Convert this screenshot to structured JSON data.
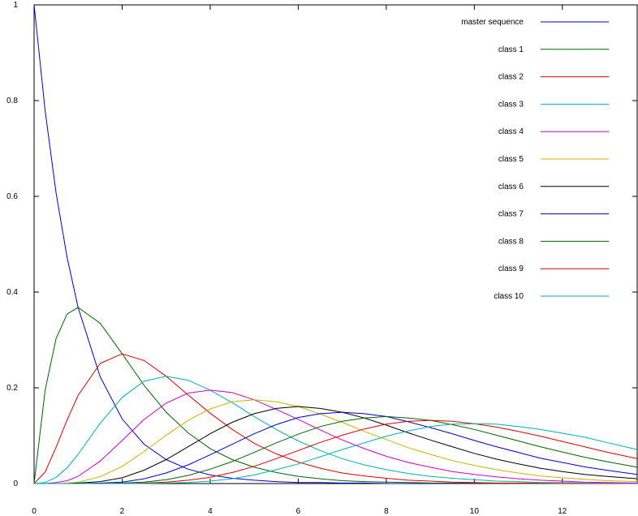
{
  "chart_data": {
    "type": "line",
    "title": "",
    "xlabel": "",
    "ylabel": "",
    "xlim": [
      0,
      13.7
    ],
    "ylim": [
      0,
      1
    ],
    "grid": false,
    "legend_placement": "top-right",
    "x_ticks": [
      {
        "value": 0,
        "label": "0"
      },
      {
        "value": 2,
        "label": "2"
      },
      {
        "value": 4,
        "label": "4"
      },
      {
        "value": 6,
        "label": "6"
      },
      {
        "value": 8,
        "label": "8"
      },
      {
        "value": 10,
        "label": "10"
      },
      {
        "value": 12,
        "label": "12"
      }
    ],
    "y_ticks": [
      {
        "value": 0,
        "label": "0"
      },
      {
        "value": 0.2,
        "label": "0.2"
      },
      {
        "value": 0.4,
        "label": "0.4"
      },
      {
        "value": 0.6,
        "label": "0.6"
      },
      {
        "value": 0.8,
        "label": "0.8"
      },
      {
        "value": 1,
        "label": "1"
      }
    ],
    "x": [
      0,
      0.25,
      0.5,
      0.75,
      1,
      1.5,
      2,
      2.5,
      3,
      3.5,
      4,
      4.5,
      5,
      5.5,
      6,
      6.5,
      7,
      7.5,
      8,
      8.5,
      9,
      9.5,
      10,
      10.5,
      11,
      11.5,
      12,
      12.5,
      13,
      13.7
    ],
    "series": [
      {
        "name": "master sequence",
        "color": "#0000cc",
        "values": [
          1,
          0.779,
          0.607,
          0.472,
          0.368,
          0.223,
          0.135,
          0.082,
          0.05,
          0.03,
          0.018,
          0.011,
          0.007,
          0.004,
          0.002,
          0.002,
          0.001,
          0.001,
          0,
          0,
          0,
          0,
          0,
          0,
          0,
          0,
          0,
          0,
          0,
          0
        ]
      },
      {
        "name": "class 1",
        "color": "#006400",
        "values": [
          0,
          0.195,
          0.303,
          0.354,
          0.368,
          0.335,
          0.271,
          0.205,
          0.149,
          0.106,
          0.073,
          0.05,
          0.034,
          0.023,
          0.015,
          0.01,
          0.006,
          0.004,
          0.003,
          0.002,
          0.001,
          0.001,
          0.001,
          0,
          0,
          0,
          0,
          0,
          0,
          0
        ]
      },
      {
        "name": "class 2",
        "color": "#dd0000",
        "values": [
          0,
          0.024,
          0.076,
          0.133,
          0.184,
          0.251,
          0.271,
          0.257,
          0.224,
          0.185,
          0.147,
          0.113,
          0.084,
          0.062,
          0.045,
          0.032,
          0.022,
          0.016,
          0.011,
          0.007,
          0.005,
          0.003,
          0.002,
          0.001,
          0.001,
          0.001,
          0,
          0,
          0,
          0
        ]
      },
      {
        "name": "class 3",
        "color": "#00b0b0",
        "values": [
          0,
          0.002,
          0.013,
          0.033,
          0.061,
          0.126,
          0.18,
          0.214,
          0.224,
          0.216,
          0.195,
          0.169,
          0.14,
          0.113,
          0.089,
          0.069,
          0.052,
          0.039,
          0.029,
          0.021,
          0.015,
          0.011,
          0.008,
          0.005,
          0.004,
          0.002,
          0.002,
          0.001,
          0.001,
          0
        ]
      },
      {
        "name": "class 4",
        "color": "#cc00cc",
        "values": [
          0,
          0,
          0.002,
          0.006,
          0.015,
          0.047,
          0.09,
          0.134,
          0.168,
          0.189,
          0.195,
          0.19,
          0.175,
          0.155,
          0.134,
          0.112,
          0.091,
          0.073,
          0.057,
          0.044,
          0.034,
          0.025,
          0.019,
          0.014,
          0.01,
          0.007,
          0.005,
          0.003,
          0.002,
          0.001
        ]
      },
      {
        "name": "class 5",
        "color": "#c8b400",
        "values": [
          0,
          0,
          0,
          0.001,
          0.003,
          0.014,
          0.036,
          0.067,
          0.101,
          0.132,
          0.156,
          0.171,
          0.175,
          0.171,
          0.161,
          0.145,
          0.128,
          0.109,
          0.092,
          0.075,
          0.061,
          0.048,
          0.038,
          0.029,
          0.022,
          0.016,
          0.012,
          0.009,
          0.006,
          0.004
        ]
      },
      {
        "name": "class 6",
        "color": "#000000",
        "values": [
          0,
          0,
          0,
          0,
          0.001,
          0.004,
          0.012,
          0.028,
          0.05,
          0.077,
          0.104,
          0.128,
          0.146,
          0.157,
          0.161,
          0.157,
          0.149,
          0.137,
          0.122,
          0.106,
          0.091,
          0.077,
          0.063,
          0.051,
          0.041,
          0.032,
          0.025,
          0.019,
          0.015,
          0.01
        ]
      },
      {
        "name": "class 7",
        "color": "#0000cc",
        "values": [
          0,
          0,
          0,
          0,
          0,
          0.001,
          0.003,
          0.01,
          0.022,
          0.039,
          0.06,
          0.082,
          0.104,
          0.123,
          0.138,
          0.146,
          0.149,
          0.146,
          0.14,
          0.129,
          0.117,
          0.104,
          0.09,
          0.077,
          0.065,
          0.053,
          0.044,
          0.035,
          0.028,
          0.019
        ]
      },
      {
        "name": "class 8",
        "color": "#006400",
        "values": [
          0,
          0,
          0,
          0,
          0,
          0,
          0.001,
          0.003,
          0.008,
          0.017,
          0.03,
          0.046,
          0.065,
          0.085,
          0.103,
          0.119,
          0.13,
          0.137,
          0.14,
          0.137,
          0.132,
          0.123,
          0.113,
          0.101,
          0.089,
          0.077,
          0.066,
          0.055,
          0.046,
          0.034
        ]
      },
      {
        "name": "class 9",
        "color": "#dd0000",
        "values": [
          0,
          0,
          0,
          0,
          0,
          0,
          0,
          0.001,
          0.003,
          0.007,
          0.013,
          0.023,
          0.036,
          0.052,
          0.069,
          0.086,
          0.101,
          0.114,
          0.124,
          0.13,
          0.132,
          0.13,
          0.125,
          0.118,
          0.109,
          0.099,
          0.088,
          0.077,
          0.066,
          0.052
        ]
      },
      {
        "name": "class 10",
        "color": "#00b0b0",
        "values": [
          0,
          0,
          0,
          0,
          0,
          0,
          0,
          0,
          0.001,
          0.002,
          0.005,
          0.01,
          0.018,
          0.029,
          0.041,
          0.056,
          0.071,
          0.085,
          0.099,
          0.11,
          0.119,
          0.124,
          0.125,
          0.124,
          0.119,
          0.113,
          0.105,
          0.097,
          0.086,
          0.071
        ]
      }
    ]
  }
}
